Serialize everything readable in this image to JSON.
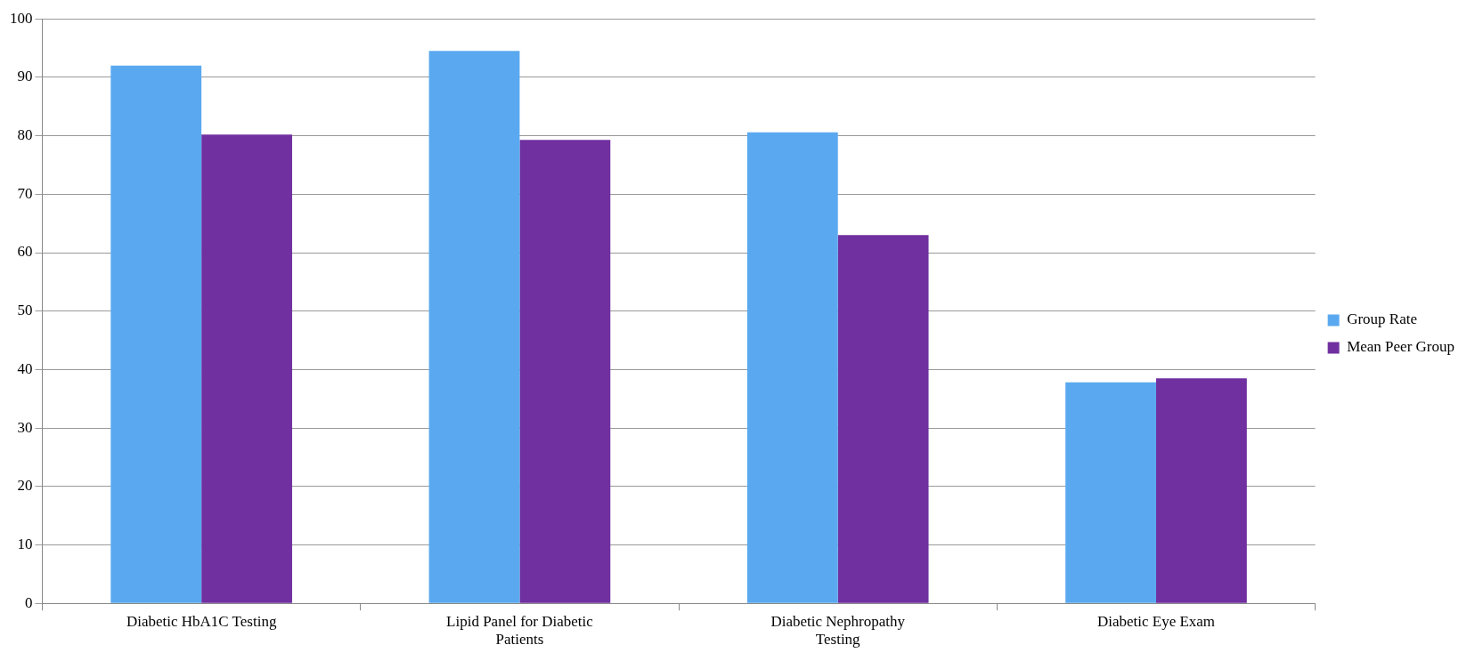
{
  "chart_data": {
    "type": "bar",
    "categories": [
      "Diabetic HbA1C Testing",
      "Lipid Panel for Diabetic Patients",
      "Diabetic Nephropathy Testing",
      "Diabetic Eye Exam"
    ],
    "series": [
      {
        "name": "Group Rate",
        "color": "#5aa9f0",
        "values": [
          92,
          94.5,
          80.6,
          37.8
        ]
      },
      {
        "name": "Mean Peer Group",
        "color": "#7030a0",
        "values": [
          80.2,
          79.3,
          63,
          38.5
        ]
      }
    ],
    "ylim": [
      0,
      100
    ],
    "yticks": [
      0,
      10,
      20,
      30,
      40,
      50,
      60,
      70,
      80,
      90,
      100
    ],
    "grid": "y",
    "legend": "right"
  }
}
